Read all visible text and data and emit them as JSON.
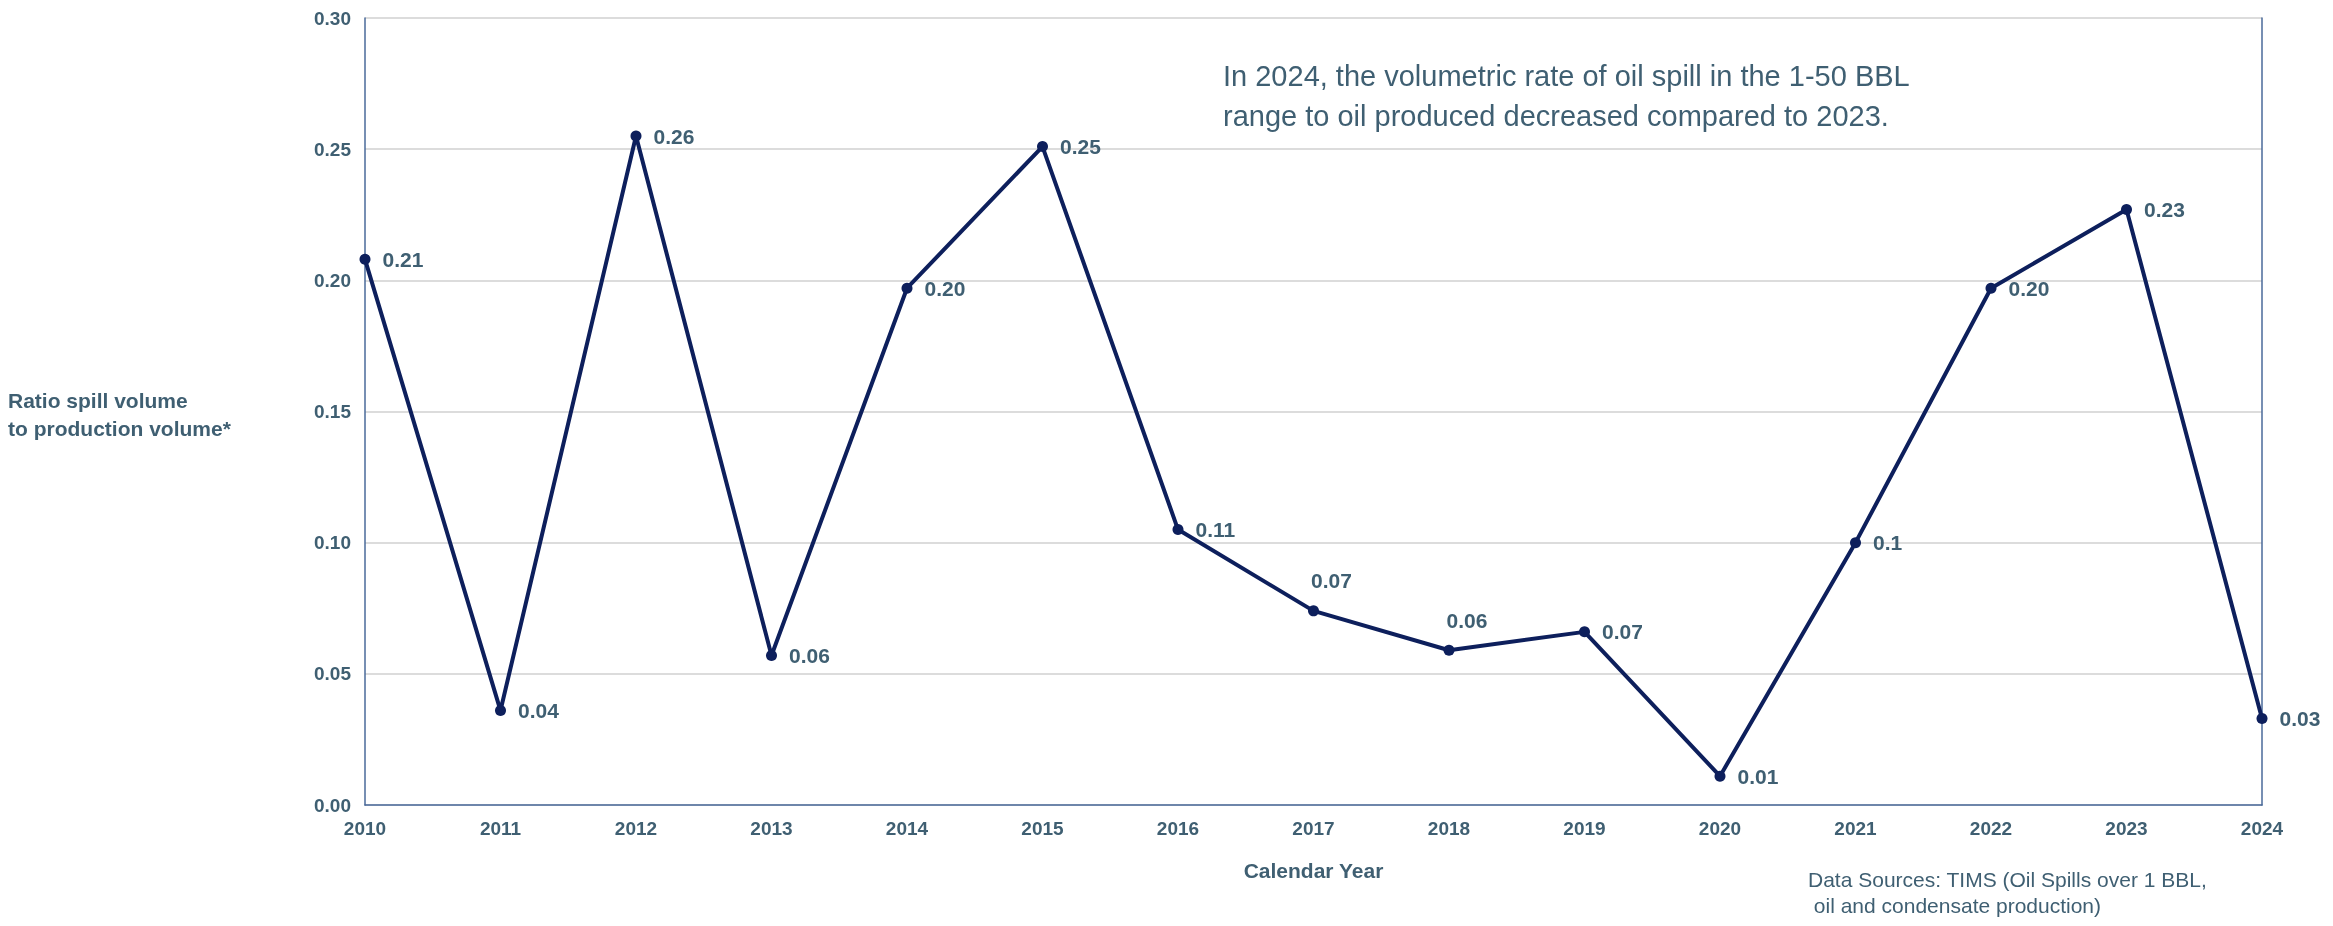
{
  "chart_data": {
    "type": "line",
    "xlabel": "Calendar Year",
    "ylabel": "Ratio spill volume\nto production volume*",
    "annotations": [
      "In 2024, the volumetric rate of oil spill in the 1-50 BBL\nrange to oil produced decreased compared to 2023.",
      "Data Sources: TIMS (Oil Spills over 1 BBL,\n oil and condensate production)"
    ],
    "categories": [
      "2010",
      "2011",
      "2012",
      "2013",
      "2014",
      "2015",
      "2016",
      "2017",
      "2018",
      "2019",
      "2020",
      "2021",
      "2022",
      "2023",
      "2024"
    ],
    "series": [
      {
        "color": "#0d1f5c",
        "values": [
          0.208,
          0.036,
          0.255,
          0.057,
          0.197,
          0.251,
          0.105,
          0.074,
          0.059,
          0.066,
          0.011,
          0.1,
          0.197,
          0.227,
          0.033
        ],
        "value_labels": [
          "0.21",
          "0.04",
          "0.26",
          "0.06",
          "0.20",
          "0.25",
          "0.11",
          "0.07",
          "0.06",
          "0.07",
          "0.01",
          "0.1",
          "0.20",
          "0.23",
          "0.03"
        ]
      }
    ],
    "ylim": [
      0,
      0.3
    ],
    "yticks": [
      {
        "value": 0,
        "label": "0.00"
      },
      {
        "value": 0.05,
        "label": "0.05"
      },
      {
        "value": 0.1,
        "label": "0.10"
      },
      {
        "value": 0.15,
        "label": "0.15"
      },
      {
        "value": 0.2,
        "label": "0.20"
      },
      {
        "value": 0.25,
        "label": "0.25"
      },
      {
        "value": 0.3,
        "label": "0.30"
      }
    ],
    "grid": "y",
    "marker": "circle",
    "line_style": "solid"
  }
}
